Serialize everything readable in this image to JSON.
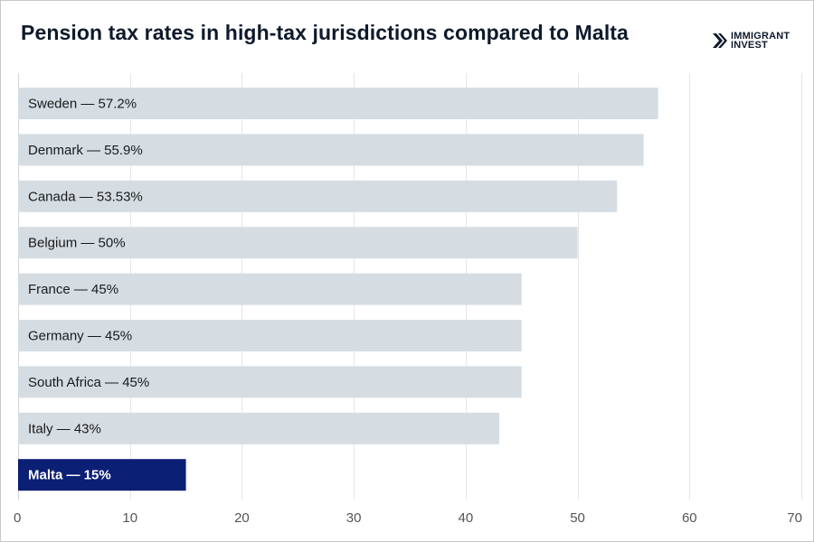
{
  "header": {
    "title": "Pension tax rates in high-tax jurisdictions compared to Malta"
  },
  "logo": {
    "line1": "IMMIGRANT",
    "line2": "INVEST",
    "icon": "double-chevron-right-icon",
    "color": "#0e1a2b"
  },
  "colors": {
    "bar": "#d5dde3",
    "highlight_bar": "#0b1f74",
    "grid": "#e6e6e6"
  },
  "chart_data": {
    "type": "bar",
    "orientation": "horizontal",
    "title": "Pension tax rates in high-tax jurisdictions compared to Malta",
    "xlabel": "",
    "ylabel": "",
    "xlim": [
      0,
      70
    ],
    "xticks": [
      0,
      10,
      20,
      30,
      40,
      50,
      60,
      70
    ],
    "grid": "vertical",
    "legend": "none",
    "bars": [
      {
        "category": "Sweden",
        "value": 57.2,
        "label": "Sweden — 57.2%"
      },
      {
        "category": "Denmark",
        "value": 55.9,
        "label": "Denmark — 55.9%"
      },
      {
        "category": "Canada",
        "value": 53.53,
        "label": "Canada — 53.53%"
      },
      {
        "category": "Belgium",
        "value": 50,
        "label": "Belgium — 50%"
      },
      {
        "category": "France",
        "value": 45,
        "label": "France — 45%"
      },
      {
        "category": "Germany",
        "value": 45,
        "label": "Germany — 45%"
      },
      {
        "category": "South Africa",
        "value": 45,
        "label": "South Africa — 45%"
      },
      {
        "category": "Italy",
        "value": 43,
        "label": "Italy — 43%"
      },
      {
        "category": "Malta",
        "value": 15,
        "label": "Malta — 15%",
        "highlight": true
      }
    ]
  }
}
